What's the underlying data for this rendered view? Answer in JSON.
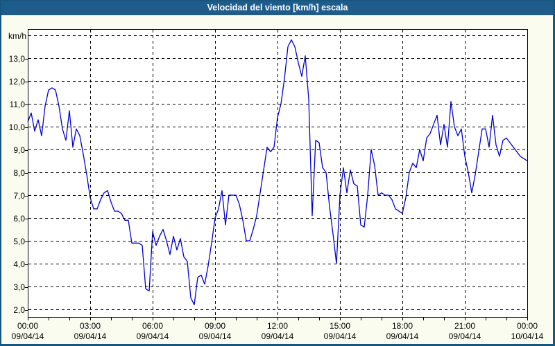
{
  "window": {
    "title": "Velocidad del viento [km/h] escala"
  },
  "colors": {
    "titlebar": "#1E5C8C",
    "frame_border": "#17567E",
    "line": "#0000D6",
    "grid": "#000000",
    "plot_background": "#FFFFFF",
    "page_background": "#FBFCF0",
    "label_text": "#000000",
    "title_text": "#FFFFFF"
  },
  "chart_data": {
    "type": "line",
    "title": "Velocidad del viento [km/h] escala",
    "y_unit_label": "km/h",
    "ylabel": "",
    "xlabel": "",
    "ylim": [
      1.7,
      14.3
    ],
    "grid": "dashed, horizontal every 1 km/h (2.0-14.0), vertical every 3 h",
    "legend": "none",
    "y_gridline_values": [
      2,
      3,
      4,
      5,
      6,
      7,
      8,
      9,
      10,
      11,
      12,
      13,
      14
    ],
    "y_tick_labels": [
      "2,0",
      "3,0",
      "4,0",
      "5,0",
      "6,0",
      "7,0",
      "8,0",
      "9,0",
      "10,0",
      "11,0",
      "12,0",
      "13,0"
    ],
    "y_tick_values": [
      2,
      3,
      4,
      5,
      6,
      7,
      8,
      9,
      10,
      11,
      12,
      13
    ],
    "x_minor_tick_every_hours": 1,
    "x_ticks": [
      {
        "hour": 0,
        "time": "00:00",
        "date": "09/04/14"
      },
      {
        "hour": 3,
        "time": "03:00",
        "date": "09/04/14"
      },
      {
        "hour": 6,
        "time": "06:00",
        "date": "09/04/14"
      },
      {
        "hour": 9,
        "time": "09:00",
        "date": "09/04/14"
      },
      {
        "hour": 12,
        "time": "12:00",
        "date": "09/04/14"
      },
      {
        "hour": 15,
        "time": "15:00",
        "date": "09/04/14"
      },
      {
        "hour": 18,
        "time": "18:00",
        "date": "09/04/14"
      },
      {
        "hour": 21,
        "time": "21:00",
        "date": "09/04/14"
      },
      {
        "hour": 24,
        "time": "00:00",
        "date": "10/04/14"
      }
    ],
    "series_name": "Velocidad del viento",
    "start_time": "00:00",
    "interval_minutes": 10,
    "values": [
      10.2,
      10.6,
      9.8,
      10.3,
      9.6,
      10.9,
      11.6,
      11.7,
      11.6,
      10.9,
      9.9,
      9.4,
      10.7,
      9.1,
      9.9,
      9.6,
      8.8,
      7.9,
      6.9,
      6.4,
      6.4,
      6.8,
      7.1,
      7.2,
      6.7,
      6.3,
      6.3,
      6.2,
      5.9,
      5.9,
      4.9,
      4.9,
      4.9,
      4.8,
      2.9,
      2.8,
      5.4,
      4.8,
      5.2,
      5.5,
      5.0,
      4.4,
      5.2,
      4.6,
      5.1,
      4.3,
      4.1,
      2.5,
      2.2,
      3.4,
      3.5,
      3.1,
      3.9,
      4.9,
      6.0,
      6.4,
      7.2,
      5.7,
      7.0,
      7.0,
      7.0,
      6.6,
      5.9,
      5.0,
      5.0,
      5.5,
      6.1,
      7.1,
      8.1,
      9.1,
      8.9,
      9.1,
      10.4,
      11.0,
      12.1,
      13.5,
      13.8,
      13.5,
      12.8,
      12.2,
      13.1,
      11.2,
      6.1,
      9.4,
      9.3,
      8.2,
      8.0,
      6.5,
      5.3,
      4.0,
      7.0,
      8.2,
      7.1,
      8.1,
      7.5,
      7.4,
      5.7,
      5.6,
      7.0,
      9.0,
      8.3,
      7.0,
      7.1,
      7.0,
      7.0,
      6.8,
      6.4,
      6.3,
      6.2,
      6.9,
      8.0,
      8.4,
      8.2,
      9.0,
      8.5,
      9.5,
      9.7,
      10.1,
      10.5,
      9.2,
      10.1,
      9.1,
      11.1,
      10.0,
      9.6,
      9.9,
      8.7,
      8.0,
      7.1,
      7.9,
      8.9,
      9.9,
      9.9,
      9.1,
      10.5,
      9.2,
      8.7,
      9.4,
      9.5,
      9.3,
      9.1,
      8.9,
      8.7,
      8.6,
      8.5
    ]
  }
}
